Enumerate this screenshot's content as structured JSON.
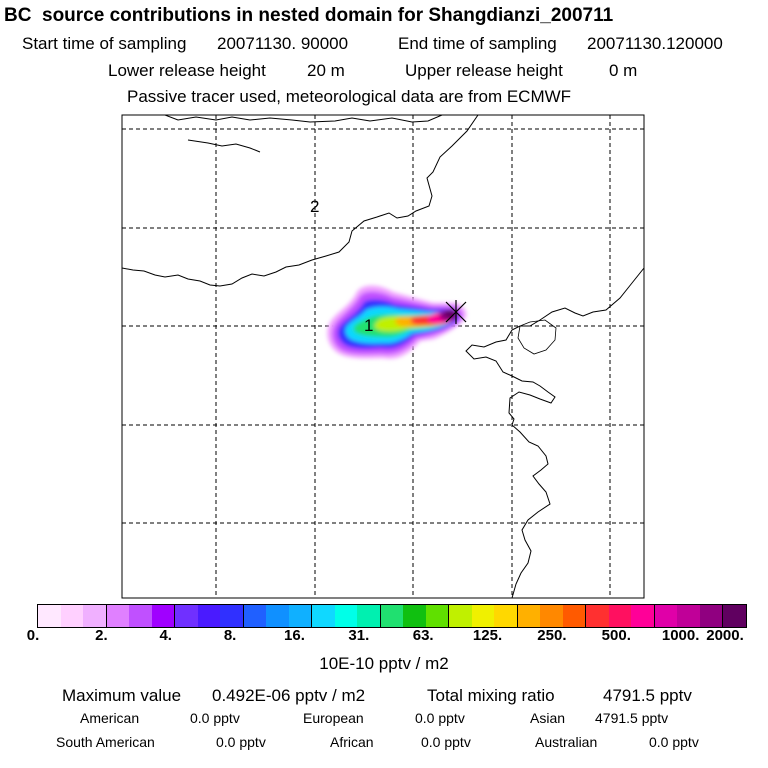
{
  "header": {
    "title": "BC  source contributions in nested domain for Shangdianzi_200711",
    "start_label": "Start time of sampling",
    "start_value": "20071130. 90000",
    "end_label": "End time of sampling",
    "end_value": "20071130.120000",
    "lower_label": "Lower release height",
    "lower_value": "20 m",
    "upper_label": "Upper release height",
    "upper_value": "0 m",
    "note": "Passive tracer used, meteorological data are from ECMWF"
  },
  "map": {
    "region_labels": [
      "2",
      "1"
    ]
  },
  "colorbar": {
    "colors": [
      "#ffe8ff",
      "#ffd0ff",
      "#f0b0ff",
      "#e080ff",
      "#c050ff",
      "#a000ff",
      "#7030ff",
      "#4a1aff",
      "#3030ff",
      "#2060ff",
      "#1090ff",
      "#10b0ff",
      "#10d8ff",
      "#00ffe8",
      "#00f0b0",
      "#20e070",
      "#10c010",
      "#60e000",
      "#c0f000",
      "#f0f000",
      "#ffd800",
      "#ffb000",
      "#ff8800",
      "#ff5a00",
      "#ff3030",
      "#ff1060",
      "#ff0098",
      "#e000a8",
      "#c00098",
      "#900080",
      "#600060"
    ],
    "ticks": [
      "0.",
      "2.",
      "4.",
      "8.",
      "16.",
      "31.",
      "63.",
      "125.",
      "250.",
      "500.",
      "1000.",
      "2000."
    ],
    "unit_label": "10E-10 pptv / m2"
  },
  "stats": {
    "max_label": "Maximum value",
    "max_value": "0.492E-06 pptv / m2",
    "total_label": "Total mixing ratio",
    "total_value": "4791.5 pptv",
    "regions": [
      {
        "name": "American",
        "value": "0.0 pptv"
      },
      {
        "name": "European",
        "value": "0.0 pptv"
      },
      {
        "name": "Asian",
        "value": "4791.5 pptv"
      },
      {
        "name": "South American",
        "value": "0.0 pptv"
      },
      {
        "name": "African",
        "value": "0.0 pptv"
      },
      {
        "name": "Australian",
        "value": "0.0 pptv"
      }
    ]
  }
}
